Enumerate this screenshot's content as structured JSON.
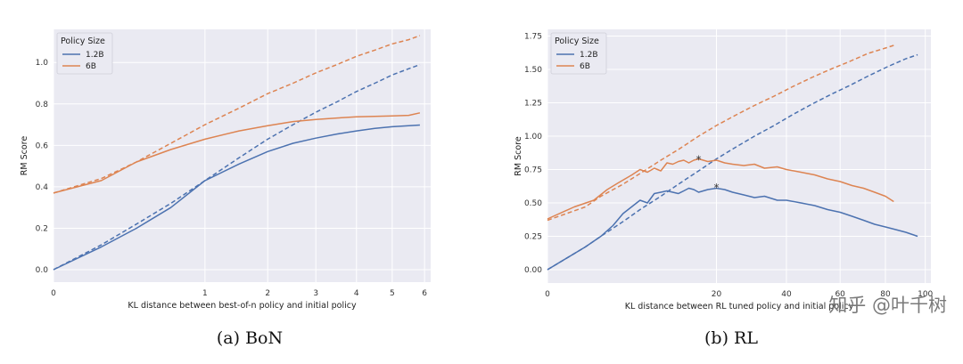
{
  "colors": {
    "s12": "#4c72b0",
    "s6": "#dd8452",
    "bg": "#eaeaf2",
    "grid": "#ffffff"
  },
  "watermark": "知乎 @叶千树",
  "chart_data": [
    {
      "type": "line",
      "caption": "(a) BoN",
      "xlabel": "KL distance between best-of-n policy and initial policy",
      "ylabel": "RM Score",
      "xscale": "sqrt",
      "xticks": [
        0,
        1,
        2,
        3,
        4,
        5,
        6
      ],
      "yticks": [
        "0.0",
        "0.2",
        "0.4",
        "0.6",
        "0.8",
        "1.0"
      ],
      "ylim": [
        -0.06,
        1.16
      ],
      "xlim": [
        0,
        6.2
      ],
      "grid": true,
      "legend": {
        "title": "Policy Size",
        "placement": "top-left"
      },
      "series": [
        {
          "name": "1.2B",
          "color": "#4c72b0",
          "dash": false,
          "x": [
            0,
            0.1,
            0.3,
            0.6,
            1.0,
            1.5,
            2.0,
            2.5,
            3.0,
            3.5,
            4.0,
            4.5,
            5.0,
            5.5,
            5.85
          ],
          "y": [
            0.0,
            0.11,
            0.2,
            0.3,
            0.43,
            0.51,
            0.57,
            0.61,
            0.635,
            0.655,
            0.67,
            0.682,
            0.69,
            0.695,
            0.698
          ]
        },
        {
          "name": "6B",
          "color": "#dd8452",
          "dash": false,
          "x": [
            0,
            0.1,
            0.3,
            0.6,
            1.0,
            1.5,
            2.0,
            2.5,
            3.0,
            3.5,
            4.0,
            4.5,
            5.0,
            5.5,
            5.85
          ],
          "y": [
            0.37,
            0.43,
            0.52,
            0.58,
            0.63,
            0.67,
            0.695,
            0.715,
            0.725,
            0.732,
            0.738,
            0.74,
            0.742,
            0.745,
            0.757
          ]
        },
        {
          "name": "",
          "color": "#4c72b0",
          "dash": true,
          "x": [
            0,
            0.1,
            0.3,
            0.6,
            1.0,
            1.5,
            2.0,
            2.5,
            3.0,
            3.5,
            4.0,
            4.5,
            5.0,
            5.5,
            5.85
          ],
          "y": [
            0.0,
            0.12,
            0.22,
            0.32,
            0.43,
            0.54,
            0.63,
            0.7,
            0.76,
            0.81,
            0.86,
            0.9,
            0.94,
            0.97,
            0.99
          ]
        },
        {
          "name": "",
          "color": "#dd8452",
          "dash": true,
          "x": [
            0,
            0.1,
            0.3,
            0.6,
            1.0,
            1.5,
            2.0,
            2.5,
            3.0,
            3.5,
            4.0,
            4.5,
            5.0,
            5.5,
            5.85
          ],
          "y": [
            0.37,
            0.44,
            0.52,
            0.61,
            0.7,
            0.78,
            0.85,
            0.9,
            0.95,
            0.99,
            1.03,
            1.06,
            1.09,
            1.11,
            1.13
          ]
        }
      ]
    },
    {
      "type": "line",
      "caption": "(b) RL",
      "xlabel": "KL distance between RL tuned policy and initial policy",
      "ylabel": "RM Score",
      "xscale": "sqrt",
      "xticks": [
        0,
        20,
        40,
        60,
        80,
        100
      ],
      "yticks": [
        "0.00",
        "0.25",
        "0.50",
        "0.75",
        "1.00",
        "1.25",
        "1.50",
        "1.75"
      ],
      "ylim": [
        -0.1,
        1.8
      ],
      "xlim": [
        0,
        103
      ],
      "grid": true,
      "legend": {
        "title": "Policy Size",
        "placement": "top-left"
      },
      "series": [
        {
          "name": "1.2B",
          "color": "#4c72b0",
          "dash": false,
          "x": [
            0,
            1,
            2,
            3,
            4,
            6,
            7,
            8,
            9,
            10,
            11,
            12,
            13,
            14,
            15,
            16,
            18,
            20,
            22,
            24,
            27,
            30,
            33,
            37,
            40,
            45,
            50,
            55,
            60,
            65,
            70,
            75,
            80,
            85,
            90,
            96
          ],
          "y": [
            0.0,
            0.17,
            0.25,
            0.33,
            0.42,
            0.52,
            0.5,
            0.57,
            0.58,
            0.59,
            0.58,
            0.57,
            0.59,
            0.61,
            0.6,
            0.58,
            0.6,
            0.61,
            0.6,
            0.58,
            0.56,
            0.54,
            0.55,
            0.52,
            0.52,
            0.5,
            0.48,
            0.45,
            0.43,
            0.4,
            0.37,
            0.34,
            0.32,
            0.3,
            0.28,
            0.25
          ]
        },
        {
          "name": "6B",
          "color": "#dd8452",
          "dash": false,
          "x": [
            0,
            0.5,
            1.5,
            2.5,
            3.5,
            5,
            6,
            7,
            8,
            9,
            10,
            11,
            12,
            13,
            14,
            15,
            16,
            18,
            20,
            22,
            24,
            27,
            30,
            33,
            37,
            40,
            45,
            50,
            55,
            60,
            65,
            70,
            75,
            80,
            84
          ],
          "y": [
            0.38,
            0.47,
            0.52,
            0.6,
            0.65,
            0.71,
            0.75,
            0.73,
            0.76,
            0.74,
            0.8,
            0.79,
            0.81,
            0.82,
            0.8,
            0.82,
            0.83,
            0.81,
            0.82,
            0.8,
            0.79,
            0.78,
            0.79,
            0.76,
            0.77,
            0.75,
            0.73,
            0.71,
            0.68,
            0.66,
            0.63,
            0.61,
            0.58,
            0.55,
            0.51
          ]
        },
        {
          "name": "",
          "color": "#4c72b0",
          "dash": true,
          "x": [
            0,
            1,
            2,
            4,
            6,
            9,
            12,
            16,
            20,
            25,
            30,
            36,
            42,
            49,
            56,
            64,
            72,
            81,
            90,
            96
          ],
          "y": [
            0.0,
            0.17,
            0.25,
            0.36,
            0.45,
            0.55,
            0.64,
            0.74,
            0.83,
            0.92,
            1.0,
            1.08,
            1.16,
            1.24,
            1.31,
            1.38,
            1.45,
            1.52,
            1.58,
            1.61
          ]
        },
        {
          "name": "",
          "color": "#dd8452",
          "dash": true,
          "x": [
            0,
            1,
            2,
            4,
            6,
            9,
            12,
            16,
            20,
            25,
            30,
            36,
            42,
            49,
            56,
            64,
            72,
            80,
            84
          ],
          "y": [
            0.37,
            0.47,
            0.55,
            0.64,
            0.72,
            0.82,
            0.9,
            1.0,
            1.08,
            1.16,
            1.23,
            1.3,
            1.37,
            1.44,
            1.5,
            1.56,
            1.62,
            1.66,
            1.68
          ]
        }
      ],
      "markers": [
        {
          "label": "*",
          "x": 20,
          "y": 0.62,
          "color": "#333333"
        },
        {
          "label": "*",
          "x": 16,
          "y": 0.83,
          "color": "#333333"
        }
      ]
    }
  ]
}
